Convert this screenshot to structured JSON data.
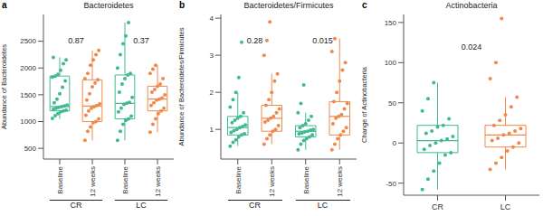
{
  "chart_data": [
    {
      "type": "box",
      "panel": "a",
      "title": "Bacteroidetes",
      "y_label": "Abundance of Bacteroidetes",
      "categories": [
        "Baseline",
        "12 weeks",
        "Baseline",
        "12 weeks"
      ],
      "groups": [
        "CR",
        "LC"
      ],
      "ylim": [
        300,
        3000
      ],
      "yticks": [
        500,
        1000,
        1500,
        2000,
        2500
      ],
      "annotations": [
        0.87,
        0.37
      ],
      "boxes": [
        {
          "color": "#3fb98f",
          "whislo": 1050,
          "q1": 1200,
          "med": 1280,
          "q3": 1850,
          "whishi": 2200,
          "values": [
            1060,
            1110,
            1150,
            1180,
            1200,
            1210,
            1230,
            1250,
            1265,
            1280,
            1290,
            1310,
            1350,
            1420,
            1520,
            1640,
            1760,
            1830,
            1850,
            1880,
            1960,
            2080,
            2150,
            2200
          ]
        },
        {
          "color": "#f0884a",
          "whislo": 650,
          "q1": 1000,
          "med": 1290,
          "q3": 1780,
          "whishi": 2330,
          "values": [
            650,
            820,
            900,
            980,
            1000,
            1050,
            1120,
            1200,
            1250,
            1280,
            1300,
            1330,
            1400,
            1520,
            1650,
            1720,
            1780,
            1800,
            1900,
            2050,
            2150,
            2250,
            2330
          ]
        },
        {
          "color": "#3fb98f",
          "whislo": 650,
          "q1": 1050,
          "med": 1340,
          "q3": 1870,
          "whishi": 2850,
          "values": [
            650,
            820,
            950,
            1020,
            1050,
            1100,
            1180,
            1250,
            1320,
            1340,
            1360,
            1450,
            1550,
            1700,
            1800,
            1870,
            1900,
            2000,
            2250,
            2450,
            2600,
            2850
          ]
        },
        {
          "color": "#f0884a",
          "whislo": 800,
          "q1": 1200,
          "med": 1420,
          "q3": 1660,
          "whishi": 2050,
          "values": [
            800,
            950,
            1050,
            1150,
            1200,
            1250,
            1300,
            1350,
            1400,
            1420,
            1440,
            1500,
            1550,
            1600,
            1660,
            1700,
            1800,
            1900,
            1980,
            2050
          ]
        }
      ]
    },
    {
      "type": "box",
      "panel": "b",
      "title": "Bacteroidetes/Firmicutes",
      "y_label": "Abundance of Bacteroidetes/Firmicutes",
      "categories": [
        "Baseline",
        "12 weeks",
        "Baseline",
        "12 weeks"
      ],
      "groups": [
        "CR",
        "LC"
      ],
      "ylim": [
        0.2,
        4.1
      ],
      "yticks": [
        1,
        2,
        3,
        4
      ],
      "annotations": [
        0.28,
        0.015
      ],
      "boxes": [
        {
          "color": "#3fb98f",
          "whislo": 0.55,
          "q1": 0.85,
          "med": 1.05,
          "q3": 1.35,
          "whishi": 2.0,
          "values": [
            0.55,
            0.65,
            0.72,
            0.8,
            0.85,
            0.88,
            0.92,
            0.97,
            1.0,
            1.05,
            1.08,
            1.12,
            1.18,
            1.25,
            1.3,
            1.35,
            1.45,
            1.6,
            1.8,
            2.0,
            2.4,
            3.35
          ]
        },
        {
          "color": "#f0884a",
          "whislo": 0.6,
          "q1": 0.95,
          "med": 1.3,
          "q3": 1.65,
          "whishi": 2.5,
          "values": [
            0.6,
            0.75,
            0.85,
            0.95,
            1.0,
            1.1,
            1.2,
            1.25,
            1.3,
            1.35,
            1.45,
            1.55,
            1.65,
            1.8,
            2.0,
            2.3,
            2.5,
            3.0,
            3.4,
            3.9
          ]
        },
        {
          "color": "#3fb98f",
          "whislo": 0.45,
          "q1": 0.8,
          "med": 0.95,
          "q3": 1.1,
          "whishi": 1.45,
          "values": [
            0.45,
            0.6,
            0.7,
            0.75,
            0.8,
            0.85,
            0.88,
            0.9,
            0.93,
            0.95,
            0.98,
            1.0,
            1.05,
            1.1,
            1.15,
            1.25,
            1.35,
            1.45,
            1.7,
            2.2
          ]
        },
        {
          "color": "#f0884a",
          "whislo": 0.45,
          "q1": 0.85,
          "med": 1.35,
          "q3": 1.75,
          "whishi": 3.45,
          "values": [
            0.45,
            0.6,
            0.75,
            0.85,
            0.95,
            1.05,
            1.15,
            1.3,
            1.35,
            1.4,
            1.55,
            1.7,
            1.75,
            2.0,
            2.3,
            2.6,
            2.8,
            3.1,
            3.45
          ]
        }
      ]
    },
    {
      "type": "box",
      "panel": "c",
      "title": "Actinobacteria",
      "y_label": "Change of Actinobacteria",
      "categories": [
        "CR",
        "LC"
      ],
      "ylim": [
        -65,
        160
      ],
      "yticks": [
        -50,
        0,
        50,
        100,
        150
      ],
      "annotations": [
        0.024
      ],
      "boxes": [
        {
          "color": "#3fb98f",
          "whislo": -58,
          "q1": -12,
          "med": 3,
          "q3": 22,
          "whishi": 75,
          "values": [
            -58,
            -45,
            -35,
            -25,
            -15,
            -12,
            -8,
            -3,
            0,
            3,
            5,
            8,
            12,
            15,
            20,
            22,
            30,
            40,
            55,
            75
          ]
        },
        {
          "color": "#f0884a",
          "whislo": -33,
          "q1": -5,
          "med": 10,
          "q3": 22,
          "whishi": 57,
          "values": [
            -33,
            -25,
            -18,
            -10,
            -5,
            0,
            3,
            6,
            10,
            12,
            15,
            18,
            22,
            28,
            35,
            45,
            57,
            80,
            100,
            155
          ]
        }
      ]
    }
  ]
}
